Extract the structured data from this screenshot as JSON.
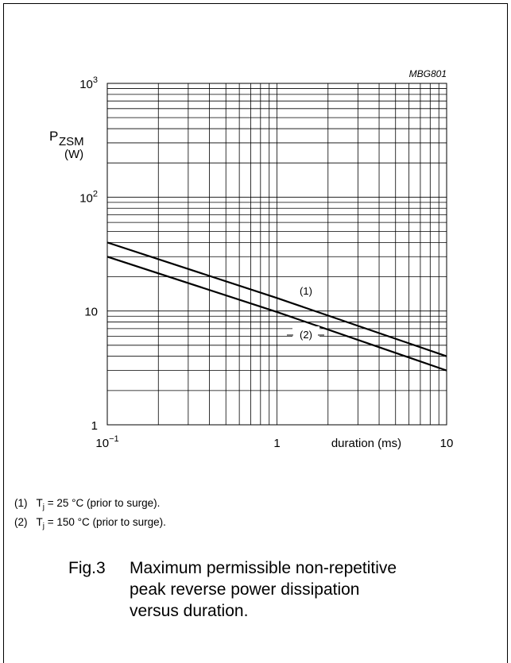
{
  "chart_data": {
    "type": "line",
    "code": "MBG801",
    "ylabel_sym": "P",
    "ylabel_sub": "ZSM",
    "ylabel_unit": "(W)",
    "xlabel": "duration (ms)",
    "xscale": "log",
    "yscale": "log",
    "xlim": [
      0.1,
      10
    ],
    "ylim": [
      1,
      1000
    ],
    "grid": true,
    "x_ticks": [
      {
        "base": "10",
        "exp": "−1"
      },
      {
        "text": "1"
      },
      {
        "text": "10"
      }
    ],
    "y_ticks": [
      {
        "text": "1"
      },
      {
        "text": "10"
      },
      {
        "base": "10",
        "exp": "2"
      },
      {
        "base": "10",
        "exp": "3"
      }
    ],
    "series": [
      {
        "name": "(1)",
        "x": [
          0.1,
          1,
          10
        ],
        "y": [
          40,
          13,
          4
        ]
      },
      {
        "name": "(2)",
        "x": [
          0.1,
          1,
          10
        ],
        "y": [
          30,
          9.8,
          3
        ]
      }
    ]
  },
  "notes": [
    {
      "num": "(1)",
      "sym": "T",
      "sub": "j",
      "text": " = 25 °C (prior to surge)."
    },
    {
      "num": "(2)",
      "sym": "T",
      "sub": "j",
      "text": " = 150 °C (prior to surge)."
    }
  ],
  "caption": {
    "fig": "Fig.3",
    "lines": [
      "Maximum permissible non-repetitive",
      "peak reverse power dissipation",
      "versus duration."
    ]
  }
}
